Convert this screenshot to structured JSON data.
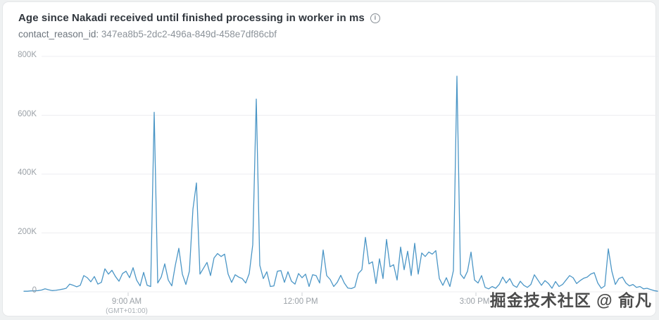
{
  "header": {
    "title": "Age since Nakadi received until finished processing in worker in ms",
    "info_icon": "i",
    "subtitle_label": "contact_reason_id:",
    "subtitle_value": "347ea8b5-2dc2-496a-849d-458e7df86cbf"
  },
  "watermark_text": "掘金技术社区 @ 俞凡",
  "colors": {
    "line": "#4b96c6",
    "grid": "#ededf0",
    "tick": "#ccd0d4",
    "axis_text": "#9ba1a7",
    "title_text": "#30363d",
    "card_border": "#e5e7e9",
    "page_bg": "#eff1f2",
    "watermark": "#4b4b4b"
  },
  "chart_data": {
    "type": "line",
    "title": "Age since Nakadi received until finished processing in worker in ms",
    "xlabel": "",
    "ylabel": "",
    "unit": "ms",
    "grid": "horizontal",
    "legend": "none",
    "ylim": [
      0,
      800000
    ],
    "y_ticks": [
      {
        "label": "800K",
        "value": 800000
      },
      {
        "label": "600K",
        "value": 600000
      },
      {
        "label": "400K",
        "value": 400000
      },
      {
        "label": "200K",
        "value": 200000
      },
      {
        "label": "0",
        "value": 0
      }
    ],
    "x_ticks": [
      {
        "label": "9:00 AM",
        "sub": "(GMT+01:00)",
        "hour": 9
      },
      {
        "label": "12:00 PM",
        "sub": "",
        "hour": 12
      },
      {
        "label": "3:00 PM",
        "sub": "",
        "hour": 15
      }
    ],
    "x_range_hours": [
      7.2,
      18.13
    ],
    "series": [
      {
        "name": "age_since_nakadi_received_ms",
        "t_start_hours": 7.2023,
        "t_step_hours": 0.06073,
        "values": [
          2000,
          2000,
          3000,
          3000,
          4000,
          6000,
          10000,
          7000,
          4000,
          5000,
          7000,
          9000,
          12000,
          26000,
          22000,
          17000,
          22000,
          55000,
          48000,
          34000,
          52000,
          26000,
          32000,
          78000,
          60000,
          73000,
          52000,
          36000,
          62000,
          70000,
          48000,
          82000,
          40000,
          20000,
          66000,
          22000,
          18000,
          610000,
          30000,
          50000,
          95000,
          40000,
          20000,
          90000,
          148000,
          60000,
          25000,
          70000,
          280000,
          370000,
          60000,
          80000,
          100000,
          55000,
          115000,
          130000,
          120000,
          128000,
          60000,
          32000,
          58000,
          50000,
          45000,
          30000,
          62000,
          160000,
          655000,
          90000,
          45000,
          68000,
          18000,
          20000,
          70000,
          72000,
          32000,
          68000,
          36000,
          26000,
          62000,
          48000,
          60000,
          18000,
          58000,
          55000,
          30000,
          142000,
          55000,
          42000,
          18000,
          32000,
          56000,
          30000,
          13000,
          11000,
          16000,
          62000,
          75000,
          185000,
          95000,
          102000,
          28000,
          112000,
          45000,
          178000,
          85000,
          92000,
          40000,
          152000,
          75000,
          138000,
          55000,
          165000,
          60000,
          132000,
          120000,
          135000,
          128000,
          140000,
          45000,
          22000,
          48000,
          18000,
          72000,
          733000,
          60000,
          45000,
          70000,
          135000,
          40000,
          30000,
          55000,
          15000,
          10000,
          18000,
          12000,
          25000,
          50000,
          30000,
          45000,
          22000,
          15000,
          36000,
          22000,
          15000,
          25000,
          58000,
          40000,
          22000,
          38000,
          28000,
          12000,
          35000,
          18000,
          25000,
          40000,
          55000,
          48000,
          28000,
          38000,
          46000,
          50000,
          60000,
          65000,
          30000,
          12000,
          20000,
          146000,
          70000,
          25000,
          45000,
          50000,
          30000,
          20000,
          25000,
          15000,
          18000,
          10000,
          12000,
          8000,
          4000,
          2000
        ]
      }
    ]
  }
}
